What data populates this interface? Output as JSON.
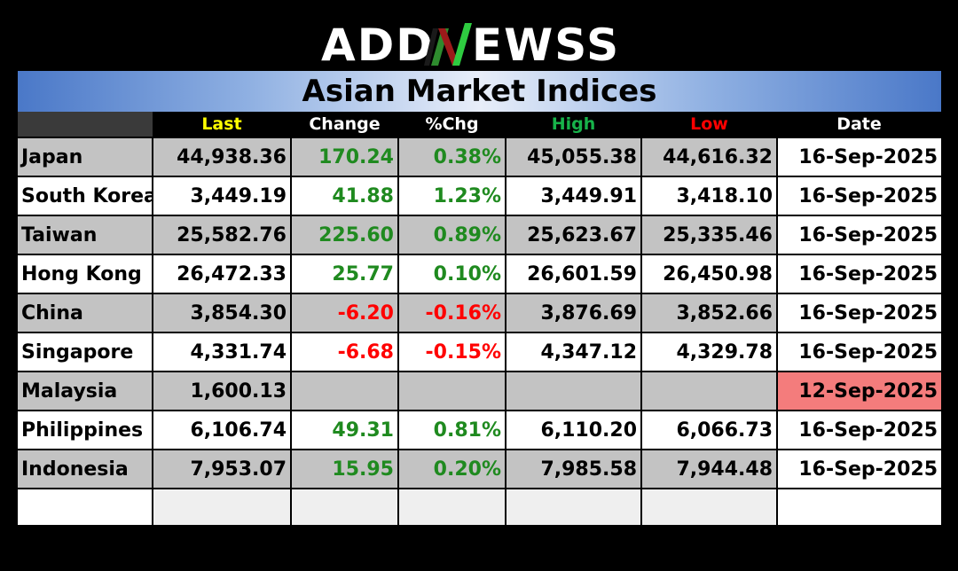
{
  "logo": {
    "text_left": "ADD",
    "text_right": "EWSS",
    "icon": "green-n-logo-icon"
  },
  "title": "Asian Market Indices",
  "columns": [
    "",
    "Last",
    "Change",
    "%Chg",
    "High",
    "Low",
    "Date"
  ],
  "colors": {
    "positive": "#1f8a1f",
    "negative": "#ff0000",
    "stale_date": "#f47c7c",
    "banner": "#4a78c8"
  },
  "rows": [
    {
      "name": "Japan",
      "last": "44,938.36",
      "change": "170.24",
      "pct": "0.38%",
      "high": "45,055.38",
      "low": "44,616.32",
      "date": "16-Sep-2025",
      "dir": "pos",
      "stale": false
    },
    {
      "name": "South Korea",
      "last": "3,449.19",
      "change": "41.88",
      "pct": "1.23%",
      "high": "3,449.91",
      "low": "3,418.10",
      "date": "16-Sep-2025",
      "dir": "pos",
      "stale": false
    },
    {
      "name": "Taiwan",
      "last": "25,582.76",
      "change": "225.60",
      "pct": "0.89%",
      "high": "25,623.67",
      "low": "25,335.46",
      "date": "16-Sep-2025",
      "dir": "pos",
      "stale": false
    },
    {
      "name": "Hong Kong",
      "last": "26,472.33",
      "change": "25.77",
      "pct": "0.10%",
      "high": "26,601.59",
      "low": "26,450.98",
      "date": "16-Sep-2025",
      "dir": "pos",
      "stale": false
    },
    {
      "name": "China",
      "last": "3,854.30",
      "change": "-6.20",
      "pct": "-0.16%",
      "high": "3,876.69",
      "low": "3,852.66",
      "date": "16-Sep-2025",
      "dir": "neg",
      "stale": false
    },
    {
      "name": "Singapore",
      "last": "4,331.74",
      "change": "-6.68",
      "pct": "-0.15%",
      "high": "4,347.12",
      "low": "4,329.78",
      "date": "16-Sep-2025",
      "dir": "neg",
      "stale": false
    },
    {
      "name": "Malaysia",
      "last": "1,600.13",
      "change": "",
      "pct": "",
      "high": "",
      "low": "",
      "date": "12-Sep-2025",
      "dir": "",
      "stale": true
    },
    {
      "name": "Philippines",
      "last": "6,106.74",
      "change": "49.31",
      "pct": "0.81%",
      "high": "6,110.20",
      "low": "6,066.73",
      "date": "16-Sep-2025",
      "dir": "pos",
      "stale": false
    },
    {
      "name": "Indonesia",
      "last": "7,953.07",
      "change": "15.95",
      "pct": "0.20%",
      "high": "7,985.58",
      "low": "7,944.48",
      "date": "16-Sep-2025",
      "dir": "pos",
      "stale": false
    }
  ]
}
